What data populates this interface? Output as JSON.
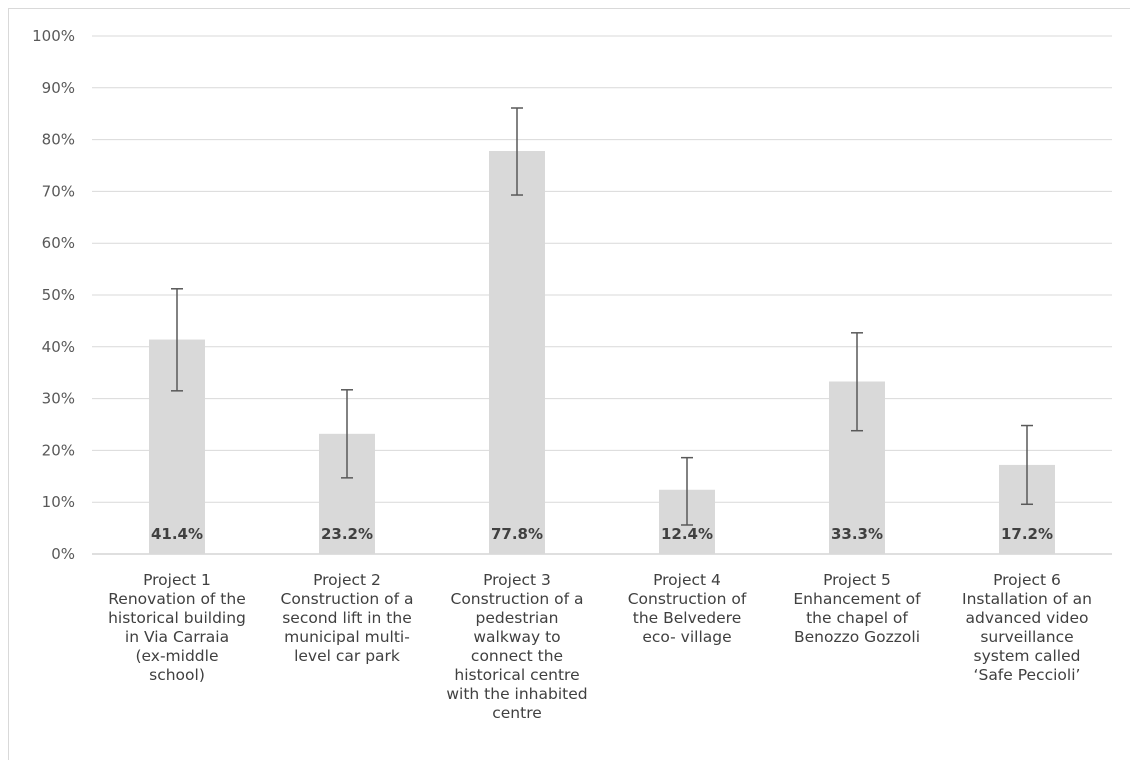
{
  "chart_data": {
    "type": "bar",
    "title": "",
    "xlabel": "",
    "ylabel": "",
    "ylim": [
      0,
      100
    ],
    "y_tick_values": [
      0,
      10,
      20,
      30,
      40,
      50,
      60,
      70,
      80,
      90,
      100
    ],
    "y_tick_labels": [
      "0%",
      "10%",
      "20%",
      "30%",
      "40%",
      "50%",
      "60%",
      "70%",
      "80%",
      "90%",
      "100%"
    ],
    "grid": true,
    "categories": [
      [
        "Project 1",
        "Renovation of the",
        "historical building",
        "in Via Carraia",
        "(ex-middle",
        "school)"
      ],
      [
        "Project 2",
        "Construction of a",
        "second lift in the",
        "municipal multi-",
        "level car park"
      ],
      [
        "Project 3",
        "Construction of a",
        "pedestrian",
        "walkway to",
        "connect the",
        "historical centre",
        "with the inhabited",
        "centre"
      ],
      [
        "Project 4",
        "Construction of",
        "the Belvedere",
        "eco- village"
      ],
      [
        "Project 5",
        "Enhancement of",
        "the chapel of",
        "Benozzo Gozzoli"
      ],
      [
        "Project 6",
        "Installation of an",
        "advanced video",
        "surveillance",
        "system called",
        "‘Safe Peccioli’"
      ]
    ],
    "values": [
      41.4,
      23.2,
      77.8,
      12.4,
      33.3,
      17.2
    ],
    "data_labels": [
      "41.4%",
      "23.2%",
      "77.8%",
      "12.4%",
      "33.3%",
      "17.2%"
    ],
    "error_low": [
      31.5,
      14.7,
      69.3,
      5.6,
      23.8,
      9.6
    ],
    "error_high": [
      51.2,
      31.7,
      86.1,
      18.6,
      42.7,
      24.8
    ],
    "colors": {
      "bar": "#d9d9d9",
      "grid": "#d9d9d9",
      "error_bar": "#595959"
    }
  }
}
